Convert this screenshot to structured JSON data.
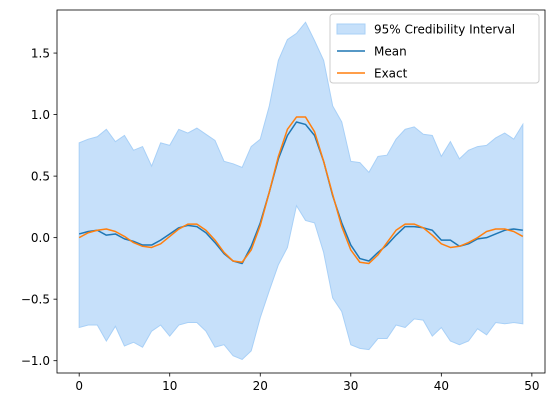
{
  "chart_data": {
    "type": "line",
    "title": "",
    "xlabel": "",
    "ylabel": "",
    "xlim": [
      -2.45,
      51.45
    ],
    "ylim": [
      -1.1,
      1.85
    ],
    "xticks": [
      0,
      10,
      20,
      30,
      40,
      50
    ],
    "yticks": [
      -1.0,
      -0.5,
      0.0,
      0.5,
      1.0,
      1.5
    ],
    "ytick_labels": [
      "−1.0",
      "−0.5",
      "0.0",
      "0.5",
      "1.0",
      "1.5"
    ],
    "grid": false,
    "legend_position": "top-right",
    "x": [
      0,
      1,
      2,
      3,
      4,
      5,
      6,
      7,
      8,
      9,
      10,
      11,
      12,
      13,
      14,
      15,
      16,
      17,
      18,
      19,
      20,
      21,
      22,
      23,
      24,
      25,
      26,
      27,
      28,
      29,
      30,
      31,
      32,
      33,
      34,
      35,
      36,
      37,
      38,
      39,
      40,
      41,
      42,
      43,
      44,
      45,
      46,
      47,
      48,
      49
    ],
    "interval": {
      "name": "95% Credibility Interval",
      "color": "#a8d0f7",
      "upper": [
        0.77,
        0.8,
        0.82,
        0.88,
        0.78,
        0.83,
        0.71,
        0.74,
        0.58,
        0.77,
        0.75,
        0.88,
        0.85,
        0.89,
        0.84,
        0.79,
        0.62,
        0.6,
        0.57,
        0.74,
        0.8,
        1.07,
        1.44,
        1.61,
        1.66,
        1.75,
        1.6,
        1.44,
        1.07,
        0.94,
        0.62,
        0.61,
        0.53,
        0.66,
        0.67,
        0.8,
        0.88,
        0.9,
        0.84,
        0.83,
        0.66,
        0.78,
        0.64,
        0.71,
        0.74,
        0.75,
        0.81,
        0.85,
        0.8,
        0.92
      ],
      "lower": [
        -0.73,
        -0.71,
        -0.71,
        -0.84,
        -0.72,
        -0.88,
        -0.85,
        -0.89,
        -0.76,
        -0.71,
        -0.8,
        -0.71,
        -0.69,
        -0.69,
        -0.76,
        -0.89,
        -0.87,
        -0.96,
        -0.99,
        -0.92,
        -0.65,
        -0.43,
        -0.22,
        -0.08,
        0.26,
        0.14,
        0.12,
        -0.12,
        -0.49,
        -0.6,
        -0.87,
        -0.9,
        -0.91,
        -0.82,
        -0.82,
        -0.71,
        -0.73,
        -0.66,
        -0.67,
        -0.8,
        -0.73,
        -0.84,
        -0.87,
        -0.84,
        -0.74,
        -0.79,
        -0.69,
        -0.7,
        -0.69,
        -0.7
      ]
    },
    "series": [
      {
        "name": "Mean",
        "color": "#1f77b4",
        "values": [
          0.03,
          0.05,
          0.06,
          0.02,
          0.03,
          -0.01,
          -0.03,
          -0.06,
          -0.06,
          -0.02,
          0.03,
          0.08,
          0.1,
          0.09,
          0.04,
          -0.04,
          -0.13,
          -0.19,
          -0.21,
          -0.07,
          0.12,
          0.37,
          0.64,
          0.83,
          0.94,
          0.92,
          0.83,
          0.62,
          0.34,
          0.12,
          -0.06,
          -0.17,
          -0.19,
          -0.12,
          -0.06,
          0.02,
          0.09,
          0.09,
          0.08,
          0.06,
          -0.02,
          -0.02,
          -0.07,
          -0.05,
          -0.01,
          0.0,
          0.03,
          0.06,
          0.07,
          0.06
        ]
      },
      {
        "name": "Exact",
        "color": "#ff7f0e",
        "values": [
          0.0,
          0.04,
          0.06,
          0.07,
          0.05,
          0.01,
          -0.04,
          -0.07,
          -0.08,
          -0.05,
          0.01,
          0.07,
          0.11,
          0.11,
          0.06,
          -0.02,
          -0.12,
          -0.19,
          -0.2,
          -0.1,
          0.1,
          0.37,
          0.66,
          0.88,
          0.98,
          0.98,
          0.86,
          0.62,
          0.35,
          0.09,
          -0.1,
          -0.2,
          -0.21,
          -0.14,
          -0.04,
          0.06,
          0.11,
          0.11,
          0.08,
          0.02,
          -0.05,
          -0.08,
          -0.07,
          -0.04,
          0.0,
          0.05,
          0.07,
          0.07,
          0.05,
          0.01
        ]
      }
    ]
  }
}
